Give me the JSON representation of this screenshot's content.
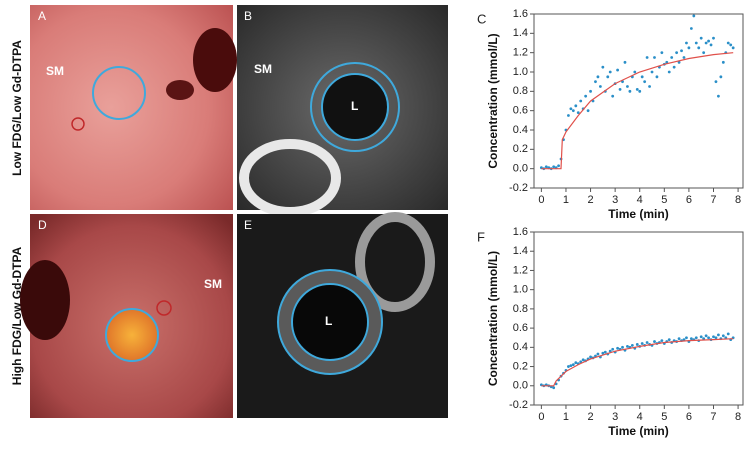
{
  "row_labels": [
    "Low FDG/Low Gd-DTPA",
    "High FDG/Low Gd-DTPA"
  ],
  "panels": {
    "A": {
      "label": "A",
      "annotation": "SM"
    },
    "B": {
      "label": "B",
      "annotations": [
        "SM",
        "L"
      ]
    },
    "D": {
      "label": "D",
      "annotation": "SM"
    },
    "E": {
      "label": "E",
      "annotation": "L"
    }
  },
  "chart_data": [
    {
      "type": "scatter",
      "panel_label": "C",
      "y_label": "Concentration (mmol/L)",
      "x_label": "Time (min)",
      "xlim": [
        -0.3,
        8.2
      ],
      "xticks": [
        0,
        1,
        2,
        3,
        4,
        5,
        6,
        7,
        8
      ],
      "ylim": [
        -0.2,
        1.6
      ],
      "yticks": [
        -0.2,
        {
          "value": 0,
          "label": "0.0"
        },
        0.2,
        0.4,
        0.6,
        0.8,
        {
          "value": 1,
          "label": "1.0"
        },
        1.2,
        1.4,
        1.6
      ],
      "series": [
        {
          "type": "scatter",
          "color": "#2a8fc8",
          "x": [
            0.0,
            0.1,
            0.2,
            0.3,
            0.4,
            0.5,
            0.6,
            0.7,
            0.8,
            0.9,
            1.0,
            1.1,
            1.2,
            1.3,
            1.4,
            1.5,
            1.6,
            1.7,
            1.8,
            1.9,
            2.0,
            2.1,
            2.2,
            2.3,
            2.4,
            2.5,
            2.6,
            2.7,
            2.8,
            2.9,
            3.0,
            3.1,
            3.2,
            3.3,
            3.4,
            3.5,
            3.6,
            3.7,
            3.8,
            3.9,
            4.0,
            4.1,
            4.2,
            4.3,
            4.4,
            4.5,
            4.6,
            4.7,
            4.8,
            4.9,
            5.0,
            5.1,
            5.2,
            5.3,
            5.4,
            5.5,
            5.6,
            5.7,
            5.8,
            5.9,
            6.0,
            6.1,
            6.2,
            6.3,
            6.4,
            6.5,
            6.6,
            6.7,
            6.8,
            6.9,
            7.0,
            7.1,
            7.2,
            7.3,
            7.4,
            7.5,
            7.6,
            7.7,
            7.8
          ],
          "values": [
            0.01,
            0.0,
            0.02,
            0.01,
            0.0,
            0.02,
            0.01,
            0.03,
            0.1,
            0.3,
            0.4,
            0.55,
            0.62,
            0.6,
            0.65,
            0.58,
            0.7,
            0.62,
            0.75,
            0.6,
            0.8,
            0.7,
            0.9,
            0.95,
            0.85,
            1.05,
            0.8,
            0.95,
            1.0,
            0.75,
            0.88,
            1.02,
            0.82,
            0.9,
            1.1,
            0.85,
            0.8,
            0.95,
            1.0,
            0.82,
            0.8,
            0.95,
            0.9,
            1.15,
            0.85,
            1.0,
            1.15,
            0.95,
            1.05,
            1.2,
            1.08,
            1.1,
            1.0,
            1.15,
            1.05,
            1.2,
            1.1,
            1.22,
            1.15,
            1.3,
            1.25,
            1.45,
            1.58,
            1.3,
            1.25,
            1.35,
            1.2,
            1.3,
            1.32,
            1.28,
            1.35,
            0.9,
            0.75,
            0.95,
            1.1,
            1.2,
            1.3,
            1.28,
            1.25
          ]
        },
        {
          "type": "line",
          "color": "#e0504a",
          "x": [
            0,
            0.8,
            0.85,
            1,
            1.5,
            2,
            3,
            4,
            5,
            6,
            7,
            7.8
          ],
          "values": [
            0,
            0,
            0.3,
            0.38,
            0.55,
            0.7,
            0.88,
            1.0,
            1.08,
            1.14,
            1.18,
            1.2
          ]
        }
      ]
    },
    {
      "type": "scatter",
      "panel_label": "F",
      "y_label": "Concentration (mmol/L)",
      "x_label": "Time (min)",
      "xlim": [
        -0.3,
        8.2
      ],
      "xticks": [
        0,
        1,
        2,
        3,
        4,
        5,
        6,
        7,
        8
      ],
      "ylim": [
        -0.2,
        1.6
      ],
      "yticks": [
        -0.2,
        {
          "value": 0,
          "label": "0.0"
        },
        0.2,
        0.4,
        0.6,
        0.8,
        {
          "value": 1,
          "label": "1.0"
        },
        1.2,
        1.4,
        1.6
      ],
      "series": [
        {
          "type": "scatter",
          "color": "#2a8fc8",
          "x": [
            0.0,
            0.1,
            0.2,
            0.3,
            0.4,
            0.5,
            0.6,
            0.7,
            0.8,
            0.9,
            1.0,
            1.1,
            1.2,
            1.3,
            1.4,
            1.5,
            1.6,
            1.7,
            1.8,
            1.9,
            2.0,
            2.1,
            2.2,
            2.3,
            2.4,
            2.5,
            2.6,
            2.7,
            2.8,
            2.9,
            3.0,
            3.1,
            3.2,
            3.3,
            3.4,
            3.5,
            3.6,
            3.7,
            3.8,
            3.9,
            4.0,
            4.1,
            4.2,
            4.3,
            4.4,
            4.5,
            4.6,
            4.7,
            4.8,
            4.9,
            5.0,
            5.1,
            5.2,
            5.3,
            5.4,
            5.5,
            5.6,
            5.7,
            5.8,
            5.9,
            6.0,
            6.1,
            6.2,
            6.3,
            6.4,
            6.5,
            6.6,
            6.7,
            6.8,
            6.9,
            7.0,
            7.1,
            7.2,
            7.3,
            7.4,
            7.5,
            7.6,
            7.7,
            7.8
          ],
          "values": [
            0.01,
            0.0,
            0.01,
            0.0,
            -0.01,
            -0.02,
            0.02,
            0.06,
            0.1,
            0.13,
            0.16,
            0.2,
            0.21,
            0.22,
            0.24,
            0.23,
            0.25,
            0.27,
            0.26,
            0.28,
            0.3,
            0.29,
            0.31,
            0.33,
            0.3,
            0.34,
            0.35,
            0.33,
            0.36,
            0.38,
            0.35,
            0.39,
            0.38,
            0.4,
            0.37,
            0.41,
            0.4,
            0.42,
            0.39,
            0.43,
            0.41,
            0.44,
            0.42,
            0.45,
            0.43,
            0.42,
            0.46,
            0.44,
            0.45,
            0.47,
            0.44,
            0.46,
            0.48,
            0.45,
            0.47,
            0.46,
            0.49,
            0.47,
            0.48,
            0.5,
            0.46,
            0.49,
            0.48,
            0.5,
            0.47,
            0.51,
            0.49,
            0.52,
            0.5,
            0.48,
            0.51,
            0.5,
            0.53,
            0.49,
            0.52,
            0.5,
            0.54,
            0.48,
            0.5
          ]
        },
        {
          "type": "line",
          "color": "#e0504a",
          "x": [
            0,
            0.5,
            0.6,
            1,
            1.5,
            2,
            3,
            4,
            5,
            6,
            7,
            7.8
          ],
          "values": [
            0,
            0,
            0.05,
            0.15,
            0.22,
            0.28,
            0.36,
            0.41,
            0.45,
            0.47,
            0.48,
            0.49
          ]
        }
      ]
    }
  ]
}
